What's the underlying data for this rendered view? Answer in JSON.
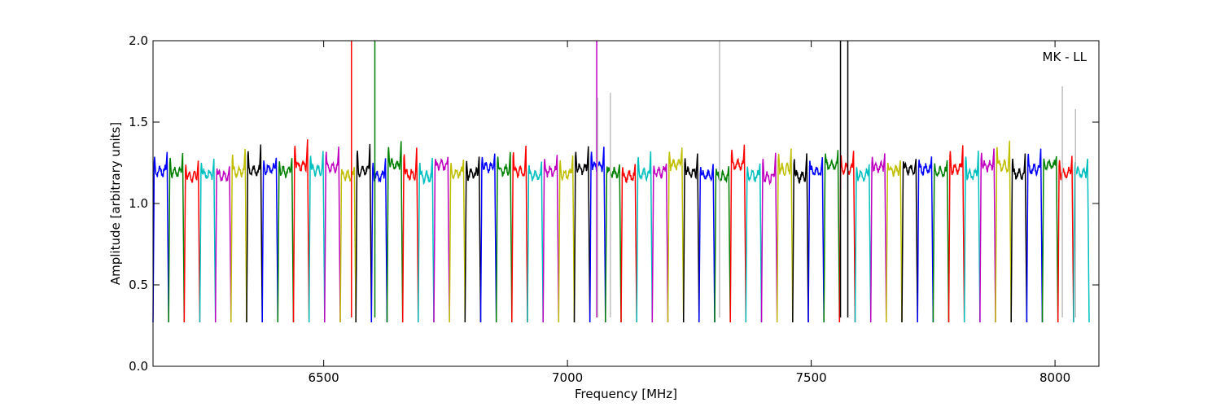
{
  "chart_data": {
    "type": "line",
    "title": "",
    "xlabel": "Frequency [MHz]",
    "ylabel": "Amplitude [arbitrary units]",
    "xlim": [
      6150,
      8090
    ],
    "ylim": [
      0.0,
      2.0
    ],
    "xticks": [
      6500,
      7000,
      7500,
      8000
    ],
    "yticks": [
      0.0,
      0.5,
      1.0,
      1.5,
      2.0
    ],
    "xtick_labels": [
      "6500",
      "7000",
      "7500",
      "8000"
    ],
    "ytick_labels": [
      "0.0",
      "0.5",
      "1.0",
      "1.5",
      "2.0"
    ],
    "grid": false,
    "legend": "none",
    "annotation": "MK - LL",
    "color_cycle": [
      "#0000ff",
      "#008000",
      "#ff0000",
      "#00bfbf",
      "#bf00bf",
      "#bfbf00",
      "#000000"
    ],
    "channel_width_mhz": 32,
    "channel_start_mhz": 6150,
    "channel_count": 60,
    "band_level": 1.2,
    "edge_level": 0.27,
    "rfi_spikes": [
      {
        "x": 6557,
        "y": 2.0,
        "color": "#ff0000"
      },
      {
        "x": 6605,
        "y": 2.0,
        "color": "#008000"
      },
      {
        "x": 7060,
        "y": 2.0,
        "color": "#bf00bf"
      },
      {
        "x": 7062,
        "y": 1.65,
        "color": "#bfbfbf"
      },
      {
        "x": 7088,
        "y": 1.68,
        "color": "#bfbfbf"
      },
      {
        "x": 7312,
        "y": 2.0,
        "color": "#bfbfbf"
      },
      {
        "x": 7560,
        "y": 2.0,
        "color": "#000000"
      },
      {
        "x": 7575,
        "y": 2.0,
        "color": "#000000"
      },
      {
        "x": 8015,
        "y": 1.72,
        "color": "#bfbfbf"
      },
      {
        "x": 8042,
        "y": 1.58,
        "color": "#bfbfbf"
      }
    ]
  }
}
